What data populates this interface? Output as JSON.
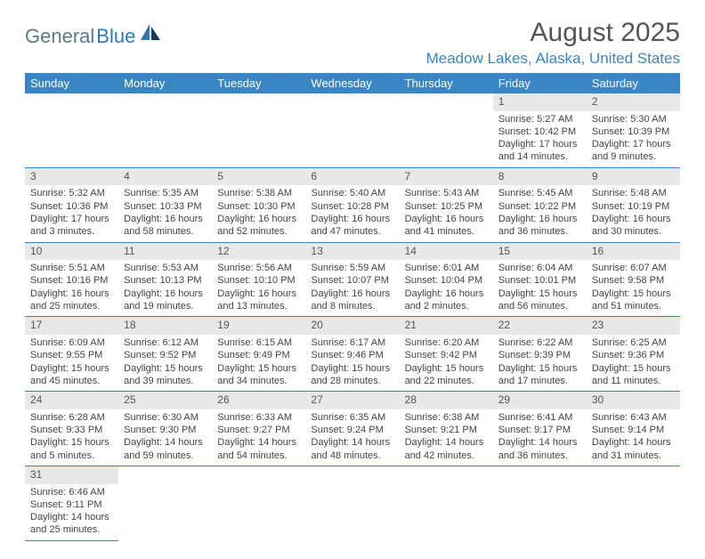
{
  "logo": {
    "part1": "General",
    "part2": "Blue"
  },
  "title": "August 2025",
  "location": "Meadow Lakes, Alaska, United States",
  "colors": {
    "header_bg": "#3a85c4",
    "header_text": "#ffffff",
    "daynum_bg": "#e8e8e8",
    "border": "#3a85c4",
    "location_color": "#3a85c4",
    "title_color": "#555555"
  },
  "day_headers": [
    "Sunday",
    "Monday",
    "Tuesday",
    "Wednesday",
    "Thursday",
    "Friday",
    "Saturday"
  ],
  "weeks": [
    [
      null,
      null,
      null,
      null,
      null,
      {
        "n": "1",
        "sr": "5:27 AM",
        "ss": "10:42 PM",
        "dl": "17 hours and 14 minutes."
      },
      {
        "n": "2",
        "sr": "5:30 AM",
        "ss": "10:39 PM",
        "dl": "17 hours and 9 minutes."
      }
    ],
    [
      {
        "n": "3",
        "sr": "5:32 AM",
        "ss": "10:36 PM",
        "dl": "17 hours and 3 minutes."
      },
      {
        "n": "4",
        "sr": "5:35 AM",
        "ss": "10:33 PM",
        "dl": "16 hours and 58 minutes."
      },
      {
        "n": "5",
        "sr": "5:38 AM",
        "ss": "10:30 PM",
        "dl": "16 hours and 52 minutes."
      },
      {
        "n": "6",
        "sr": "5:40 AM",
        "ss": "10:28 PM",
        "dl": "16 hours and 47 minutes."
      },
      {
        "n": "7",
        "sr": "5:43 AM",
        "ss": "10:25 PM",
        "dl": "16 hours and 41 minutes."
      },
      {
        "n": "8",
        "sr": "5:45 AM",
        "ss": "10:22 PM",
        "dl": "16 hours and 36 minutes."
      },
      {
        "n": "9",
        "sr": "5:48 AM",
        "ss": "10:19 PM",
        "dl": "16 hours and 30 minutes."
      }
    ],
    [
      {
        "n": "10",
        "sr": "5:51 AM",
        "ss": "10:16 PM",
        "dl": "16 hours and 25 minutes."
      },
      {
        "n": "11",
        "sr": "5:53 AM",
        "ss": "10:13 PM",
        "dl": "16 hours and 19 minutes."
      },
      {
        "n": "12",
        "sr": "5:56 AM",
        "ss": "10:10 PM",
        "dl": "16 hours and 13 minutes."
      },
      {
        "n": "13",
        "sr": "5:59 AM",
        "ss": "10:07 PM",
        "dl": "16 hours and 8 minutes."
      },
      {
        "n": "14",
        "sr": "6:01 AM",
        "ss": "10:04 PM",
        "dl": "16 hours and 2 minutes."
      },
      {
        "n": "15",
        "sr": "6:04 AM",
        "ss": "10:01 PM",
        "dl": "15 hours and 56 minutes."
      },
      {
        "n": "16",
        "sr": "6:07 AM",
        "ss": "9:58 PM",
        "dl": "15 hours and 51 minutes."
      }
    ],
    [
      {
        "n": "17",
        "sr": "6:09 AM",
        "ss": "9:55 PM",
        "dl": "15 hours and 45 minutes."
      },
      {
        "n": "18",
        "sr": "6:12 AM",
        "ss": "9:52 PM",
        "dl": "15 hours and 39 minutes."
      },
      {
        "n": "19",
        "sr": "6:15 AM",
        "ss": "9:49 PM",
        "dl": "15 hours and 34 minutes."
      },
      {
        "n": "20",
        "sr": "6:17 AM",
        "ss": "9:46 PM",
        "dl": "15 hours and 28 minutes."
      },
      {
        "n": "21",
        "sr": "6:20 AM",
        "ss": "9:42 PM",
        "dl": "15 hours and 22 minutes."
      },
      {
        "n": "22",
        "sr": "6:22 AM",
        "ss": "9:39 PM",
        "dl": "15 hours and 17 minutes."
      },
      {
        "n": "23",
        "sr": "6:25 AM",
        "ss": "9:36 PM",
        "dl": "15 hours and 11 minutes."
      }
    ],
    [
      {
        "n": "24",
        "sr": "6:28 AM",
        "ss": "9:33 PM",
        "dl": "15 hours and 5 minutes."
      },
      {
        "n": "25",
        "sr": "6:30 AM",
        "ss": "9:30 PM",
        "dl": "14 hours and 59 minutes."
      },
      {
        "n": "26",
        "sr": "6:33 AM",
        "ss": "9:27 PM",
        "dl": "14 hours and 54 minutes."
      },
      {
        "n": "27",
        "sr": "6:35 AM",
        "ss": "9:24 PM",
        "dl": "14 hours and 48 minutes."
      },
      {
        "n": "28",
        "sr": "6:38 AM",
        "ss": "9:21 PM",
        "dl": "14 hours and 42 minutes."
      },
      {
        "n": "29",
        "sr": "6:41 AM",
        "ss": "9:17 PM",
        "dl": "14 hours and 36 minutes."
      },
      {
        "n": "30",
        "sr": "6:43 AM",
        "ss": "9:14 PM",
        "dl": "14 hours and 31 minutes."
      }
    ],
    [
      {
        "n": "31",
        "sr": "6:46 AM",
        "ss": "9:11 PM",
        "dl": "14 hours and 25 minutes."
      },
      null,
      null,
      null,
      null,
      null,
      null
    ]
  ],
  "labels": {
    "sunrise": "Sunrise: ",
    "sunset": "Sunset: ",
    "daylight": "Daylight: "
  }
}
